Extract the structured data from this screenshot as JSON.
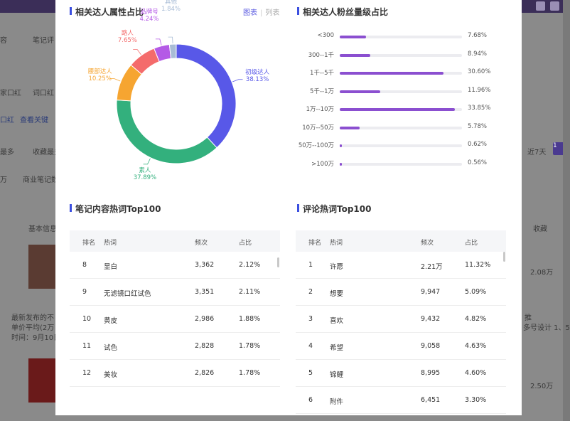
{
  "background": {
    "left_snippets": [
      "容",
      "笔记评",
      "家口红",
      "词口红",
      "口红",
      "查看关键",
      "最多",
      "收藏最多",
      "万",
      "商业笔记数",
      "基本信息",
      "最新发布的不",
      "单价平均(2万",
      "时间：9月10日"
    ],
    "right_snippets": [
      "近7天",
      "收藏",
      "2.08万",
      "2.50万",
      "1"
    ],
    "right_notes": [
      "推",
      "多号设计 1、5"
    ]
  },
  "attr_section": {
    "title": "相关达人属性占比",
    "view_chart": "图表",
    "view_list": "列表",
    "chart_data": {
      "type": "pie",
      "donut": true,
      "categories": [
        "初级达人",
        "素人",
        "腰部达人",
        "路人",
        "品牌号",
        "其他"
      ],
      "values": [
        38.13,
        37.89,
        10.25,
        7.65,
        4.24,
        1.84
      ],
      "labels": [
        "38.13%",
        "37.89%",
        "10.25%",
        "7.65%",
        "4.24%",
        "1.84%"
      ],
      "colors": [
        "#5858e8",
        "#33b07d",
        "#f6a531",
        "#f46b6b",
        "#b45ae6",
        "#a8bcd6"
      ]
    }
  },
  "fans_section": {
    "title": "相关达人粉丝量级占比",
    "chart_data": {
      "type": "bar",
      "orientation": "horizontal",
      "categories": [
        "<300",
        "300--1千",
        "1千--5千",
        "5千--1万",
        "1万--10万",
        "10万--50万",
        "50万--100万",
        ">100万"
      ],
      "values": [
        7.68,
        8.94,
        30.6,
        11.96,
        33.85,
        5.78,
        0.62,
        0.56
      ],
      "labels": [
        "7.68%",
        "8.94%",
        "30.60%",
        "11.96%",
        "33.85%",
        "5.78%",
        "0.62%",
        "0.56%"
      ],
      "xlim": [
        0,
        36
      ]
    }
  },
  "note_words": {
    "title": "笔记内容热词Top100",
    "headers": [
      "排名",
      "热词",
      "频次",
      "占比"
    ],
    "rows": [
      [
        "8",
        "显白",
        "3,362",
        "2.12%"
      ],
      [
        "9",
        "无滤镜口红试色",
        "3,351",
        "2.11%"
      ],
      [
        "10",
        "黄皮",
        "2,986",
        "1.88%"
      ],
      [
        "11",
        "试色",
        "2,828",
        "1.78%"
      ],
      [
        "12",
        "美妆",
        "2,826",
        "1.78%"
      ]
    ]
  },
  "comment_words": {
    "title": "评论热词Top100",
    "headers": [
      "排名",
      "热词",
      "频次",
      "占比"
    ],
    "rows": [
      [
        "1",
        "许愿",
        "2.21万",
        "11.32%"
      ],
      [
        "2",
        "想要",
        "9,947",
        "5.09%"
      ],
      [
        "3",
        "喜欢",
        "9,432",
        "4.82%"
      ],
      [
        "4",
        "希望",
        "9,058",
        "4.63%"
      ],
      [
        "5",
        "锦鲤",
        "8,995",
        "4.60%"
      ],
      [
        "6",
        "附件",
        "6,451",
        "3.30%"
      ]
    ]
  }
}
